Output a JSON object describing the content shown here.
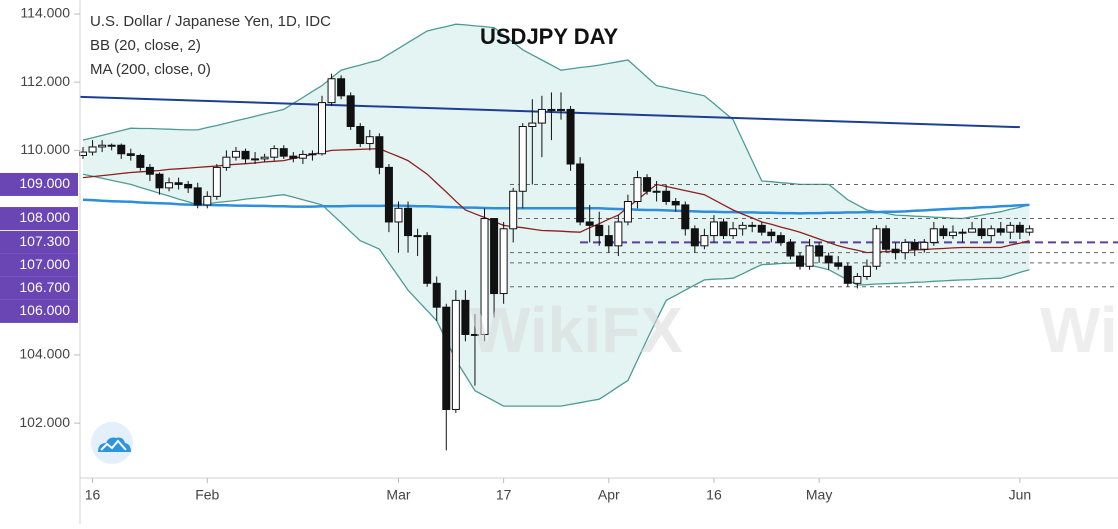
{
  "chart_data": {
    "type": "candlestick",
    "title": "USDJPY DAY",
    "symbol": "U.S. Dollar / Japanese Yen, 1D, IDC",
    "indicators": [
      "BB (20, close, 2)",
      "MA (200, close, 0)"
    ],
    "watermark": "WikiFX",
    "categories": [
      null,
      "16",
      null,
      null,
      null,
      null,
      null,
      null,
      null,
      null,
      null,
      null,
      null,
      "Feb",
      null,
      null,
      null,
      null,
      null,
      null,
      null,
      null,
      null,
      null,
      null,
      null,
      null,
      null,
      null,
      null,
      null,
      null,
      null,
      "Mar",
      null,
      null,
      null,
      null,
      null,
      null,
      null,
      null,
      null,
      null,
      "17",
      null,
      null,
      null,
      null,
      null,
      null,
      null,
      null,
      null,
      null,
      "Apr",
      null,
      null,
      null,
      null,
      null,
      null,
      null,
      null,
      null,
      null,
      "16",
      null,
      null,
      null,
      null,
      null,
      null,
      null,
      null,
      null,
      null,
      "May",
      null,
      null,
      null,
      null,
      null,
      null,
      null,
      null,
      null,
      null,
      null,
      null,
      null,
      null,
      null,
      null,
      null,
      null,
      null,
      null,
      "Jun",
      null
    ],
    "open": [
      109.85,
      109.95,
      110.1,
      110.15,
      110.15,
      109.9,
      109.85,
      109.5,
      109.3,
      108.9,
      109.05,
      109.0,
      108.9,
      108.4,
      108.65,
      109.5,
      109.8,
      109.97,
      109.75,
      109.75,
      109.8,
      110.05,
      109.83,
      109.77,
      109.88,
      109.9,
      111.4,
      112.1,
      111.6,
      110.7,
      110.2,
      110.4,
      109.5,
      107.9,
      108.3,
      107.5,
      107.5,
      106.1,
      105.4,
      102.4,
      105.6,
      104.6,
      104.6,
      108.0,
      105.8,
      107.7,
      108.8,
      110.7,
      110.8,
      111.2,
      111.2,
      111.2,
      109.6,
      107.9,
      107.8,
      107.5,
      107.2,
      107.9,
      108.5,
      109.2,
      108.8,
      108.8,
      108.5,
      108.4,
      107.7,
      107.2,
      107.5,
      107.9,
      107.5,
      107.7,
      107.8,
      107.8,
      107.6,
      107.5,
      107.3,
      106.9,
      106.6,
      107.2,
      106.9,
      106.7,
      106.6,
      106.1,
      106.3,
      106.6,
      107.7,
      107.1,
      107.0,
      107.3,
      107.1,
      107.3,
      107.7,
      107.5,
      107.6,
      107.6,
      107.7,
      107.5,
      107.7,
      107.6,
      107.8,
      107.6
    ],
    "high": [
      110.1,
      110.3,
      110.3,
      110.2,
      110.2,
      110.05,
      109.9,
      109.6,
      109.35,
      109.2,
      109.2,
      109.1,
      109.05,
      108.8,
      109.6,
      110.0,
      110.1,
      110.05,
      109.95,
      109.9,
      110.15,
      110.15,
      109.95,
      110.0,
      110.0,
      111.6,
      112.25,
      112.2,
      111.7,
      110.8,
      110.6,
      110.5,
      109.6,
      108.5,
      108.5,
      107.7,
      107.6,
      106.3,
      105.5,
      105.9,
      105.9,
      105.2,
      108.3,
      108.0,
      107.9,
      108.9,
      110.8,
      111.5,
      111.6,
      111.7,
      111.7,
      111.3,
      109.8,
      108.4,
      108.2,
      107.8,
      108.1,
      108.7,
      109.4,
      109.3,
      109.1,
      109.0,
      108.6,
      108.5,
      107.8,
      107.7,
      108.1,
      108.0,
      107.9,
      107.9,
      107.9,
      107.9,
      107.7,
      107.6,
      107.4,
      107.0,
      107.4,
      107.3,
      107.0,
      106.9,
      106.7,
      106.4,
      106.8,
      107.8,
      107.8,
      107.3,
      107.4,
      107.4,
      107.4,
      107.9,
      107.8,
      107.8,
      107.7,
      107.9,
      108.0,
      107.8,
      107.9,
      107.9,
      107.9,
      107.8
    ],
    "low": [
      109.75,
      109.85,
      109.95,
      110.0,
      109.75,
      109.7,
      109.4,
      109.1,
      108.7,
      108.8,
      108.85,
      108.75,
      108.3,
      108.3,
      108.55,
      109.4,
      109.7,
      109.6,
      109.6,
      109.65,
      109.7,
      109.75,
      109.65,
      109.6,
      109.7,
      109.85,
      111.3,
      111.5,
      110.6,
      110.1,
      110.0,
      109.3,
      107.6,
      107.0,
      107.0,
      106.9,
      106.0,
      105.0,
      101.2,
      102.3,
      104.4,
      103.1,
      104.4,
      105.1,
      105.5,
      107.3,
      108.3,
      109.0,
      109.8,
      110.3,
      110.9,
      109.4,
      107.8,
      107.3,
      107.2,
      107.0,
      106.9,
      107.8,
      108.3,
      108.7,
      108.5,
      108.4,
      108.2,
      107.5,
      107.0,
      107.1,
      107.3,
      107.4,
      107.4,
      107.5,
      107.6,
      107.5,
      107.3,
      107.2,
      106.8,
      106.5,
      106.5,
      106.7,
      106.5,
      106.5,
      106.0,
      105.95,
      106.2,
      106.5,
      107.0,
      106.8,
      106.8,
      106.9,
      107.0,
      107.2,
      107.4,
      107.4,
      107.3,
      107.6,
      107.4,
      107.3,
      107.5,
      107.4,
      107.4,
      107.5
    ],
    "close": [
      109.95,
      110.1,
      110.15,
      110.15,
      109.9,
      109.85,
      109.5,
      109.3,
      108.9,
      109.05,
      109.0,
      108.9,
      108.4,
      108.65,
      109.5,
      109.8,
      109.97,
      109.75,
      109.75,
      109.8,
      110.05,
      109.83,
      109.77,
      109.88,
      109.9,
      111.4,
      112.1,
      111.6,
      110.7,
      110.2,
      110.4,
      109.5,
      107.9,
      108.3,
      107.5,
      107.5,
      106.1,
      105.4,
      102.4,
      105.6,
      104.6,
      104.6,
      108.0,
      105.8,
      107.7,
      108.8,
      110.7,
      110.8,
      111.2,
      111.2,
      111.2,
      109.6,
      107.9,
      107.8,
      107.5,
      107.2,
      107.9,
      108.5,
      109.2,
      108.8,
      108.8,
      108.5,
      108.4,
      107.7,
      107.2,
      107.5,
      107.9,
      107.5,
      107.7,
      107.8,
      107.8,
      107.6,
      107.5,
      107.3,
      106.9,
      106.6,
      107.2,
      106.9,
      106.7,
      106.6,
      106.1,
      106.3,
      106.6,
      107.7,
      107.1,
      107.0,
      107.3,
      107.1,
      107.3,
      107.7,
      107.5,
      107.6,
      107.6,
      107.7,
      107.5,
      107.7,
      107.6,
      107.8,
      107.6,
      107.7
    ],
    "up_color": "#ffffff",
    "down_color": "#111111",
    "candle_stroke": "#111111",
    "bollinger": {
      "line_color": "#4d9b96",
      "fill_color": "#e4f4f3",
      "basis_color": "#8e1f1f",
      "upper": [
        110.3,
        110.37,
        110.44,
        110.51,
        110.58,
        110.65,
        110.64,
        110.64,
        110.63,
        110.62,
        110.61,
        110.6,
        110.6,
        110.67,
        110.73,
        110.8,
        110.87,
        110.93,
        111.0,
        111.07,
        111.13,
        111.2,
        111.38,
        111.55,
        111.73,
        111.9,
        112.13,
        112.35,
        112.43,
        112.5,
        112.58,
        112.65,
        112.82,
        112.99,
        113.16,
        113.33,
        113.5,
        113.57,
        113.63,
        113.7,
        113.68,
        113.65,
        113.63,
        113.6,
        113.38,
        113.17,
        112.95,
        112.8,
        112.65,
        112.5,
        112.35,
        112.39,
        112.43,
        112.46,
        112.5,
        112.55,
        112.6,
        112.65,
        112.4,
        112.15,
        111.9,
        111.84,
        111.78,
        111.72,
        111.66,
        111.6,
        111.37,
        111.13,
        110.9,
        110.3,
        109.7,
        109.1,
        109.08,
        109.05,
        109.03,
        109.0,
        109.0,
        109.0,
        109.0,
        108.78,
        108.55,
        108.4,
        108.25,
        108.2,
        108.15,
        108.1,
        108.09,
        108.07,
        108.06,
        108.04,
        108.03,
        108.01,
        108.0,
        108.05,
        108.1,
        108.15,
        108.2,
        108.27,
        108.33,
        108.4
      ],
      "lower": [
        109.3,
        109.24,
        109.18,
        109.12,
        109.06,
        109.0,
        108.91,
        108.83,
        108.74,
        108.66,
        108.57,
        108.49,
        108.4,
        108.43,
        108.47,
        108.5,
        108.53,
        108.57,
        108.6,
        108.63,
        108.67,
        108.7,
        108.63,
        108.55,
        108.48,
        108.4,
        108.14,
        107.88,
        107.61,
        107.35,
        107.23,
        107.1,
        106.7,
        106.3,
        105.9,
        105.6,
        105.3,
        105.0,
        104.43,
        103.85,
        103.4,
        102.95,
        102.8,
        102.65,
        102.5,
        102.5,
        102.5,
        102.5,
        102.5,
        102.5,
        102.5,
        102.55,
        102.6,
        102.65,
        102.7,
        102.88,
        103.07,
        103.25,
        103.85,
        104.45,
        105.03,
        105.6,
        105.75,
        105.9,
        106.05,
        106.2,
        106.22,
        106.23,
        106.25,
        106.38,
        106.52,
        106.65,
        106.66,
        106.68,
        106.69,
        106.7,
        106.63,
        106.57,
        106.5,
        106.35,
        106.2,
        106.05,
        106.06,
        106.08,
        106.09,
        106.1,
        106.11,
        106.13,
        106.14,
        106.16,
        106.17,
        106.19,
        106.2,
        106.21,
        106.23,
        106.24,
        106.25,
        106.33,
        106.42,
        106.5
      ],
      "basis": [
        109.2,
        109.23,
        109.26,
        109.29,
        109.32,
        109.35,
        109.37,
        109.39,
        109.41,
        109.44,
        109.46,
        109.48,
        109.5,
        109.52,
        109.54,
        109.57,
        109.59,
        109.61,
        109.63,
        109.66,
        109.68,
        109.7,
        109.76,
        109.82,
        109.88,
        109.94,
        110.0,
        110.01,
        110.02,
        110.03,
        110.04,
        110.05,
        109.93,
        109.82,
        109.7,
        109.5,
        109.3,
        109.04,
        108.78,
        108.51,
        108.25,
        108.14,
        108.03,
        107.91,
        107.8,
        107.76,
        107.73,
        107.69,
        107.65,
        107.64,
        107.63,
        107.61,
        107.6,
        107.73,
        107.85,
        107.98,
        108.1,
        108.33,
        108.55,
        108.78,
        109.0,
        108.94,
        108.88,
        108.82,
        108.76,
        108.7,
        108.55,
        108.4,
        108.25,
        108.13,
        108.02,
        107.9,
        107.83,
        107.75,
        107.68,
        107.6,
        107.5,
        107.4,
        107.3,
        107.2,
        107.13,
        107.07,
        107.0,
        107.02,
        107.03,
        107.05,
        107.06,
        107.08,
        107.09,
        107.11,
        107.12,
        107.14,
        107.15,
        107.15,
        107.15,
        107.15,
        107.15,
        107.22,
        107.28,
        107.35
      ]
    },
    "ma200": {
      "color": "#2d8fdc",
      "values": [
        108.55,
        108.54,
        108.52,
        108.51,
        108.5,
        108.49,
        108.47,
        108.46,
        108.45,
        108.44,
        108.42,
        108.41,
        108.4,
        108.4,
        108.39,
        108.39,
        108.38,
        108.38,
        108.37,
        108.37,
        108.36,
        108.36,
        108.35,
        108.35,
        108.35,
        108.36,
        108.36,
        108.36,
        108.37,
        108.37,
        108.37,
        108.37,
        108.38,
        108.38,
        108.37,
        108.36,
        108.36,
        108.35,
        108.34,
        108.33,
        108.32,
        108.32,
        108.31,
        108.3,
        108.3,
        108.3,
        108.3,
        108.3,
        108.3,
        108.3,
        108.3,
        108.3,
        108.3,
        108.3,
        108.3,
        108.29,
        108.28,
        108.27,
        108.26,
        108.25,
        108.25,
        108.24,
        108.23,
        108.22,
        108.21,
        108.2,
        108.2,
        108.19,
        108.19,
        108.18,
        108.18,
        108.17,
        108.17,
        108.16,
        108.16,
        108.15,
        108.16,
        108.16,
        108.17,
        108.17,
        108.18,
        108.18,
        108.19,
        108.19,
        108.2,
        108.2,
        108.21,
        108.23,
        108.24,
        108.26,
        108.27,
        108.29,
        108.3,
        108.31,
        108.33,
        108.34,
        108.36,
        108.37,
        108.39,
        108.4
      ]
    },
    "trendline": {
      "color": "#1d3f91",
      "values": [
        111.57,
        110.68
      ]
    },
    "levels": [
      {
        "value": 109,
        "label": "109.000",
        "color": "#666666"
      },
      {
        "value": 108,
        "label": "108.000",
        "color": "#666666"
      },
      {
        "value": 107.3,
        "label": "107.300",
        "color": "#5b3fa3"
      },
      {
        "value": 107,
        "label": "107.000",
        "color": "#666666"
      },
      {
        "value": 106.7,
        "label": "106.700",
        "color": "#666666"
      },
      {
        "value": 106,
        "label": "106.000",
        "color": "#666666"
      }
    ],
    "level_box_color": "#6a45b4",
    "ylim": [
      100.39,
      114.41
    ],
    "yticks": [
      {
        "value": 114,
        "label": "114.000"
      },
      {
        "value": 112,
        "label": "112.000"
      },
      {
        "value": 110,
        "label": "110.000"
      },
      {
        "value": 104,
        "label": "104.000"
      },
      {
        "value": 102,
        "label": "102.000"
      }
    ]
  }
}
